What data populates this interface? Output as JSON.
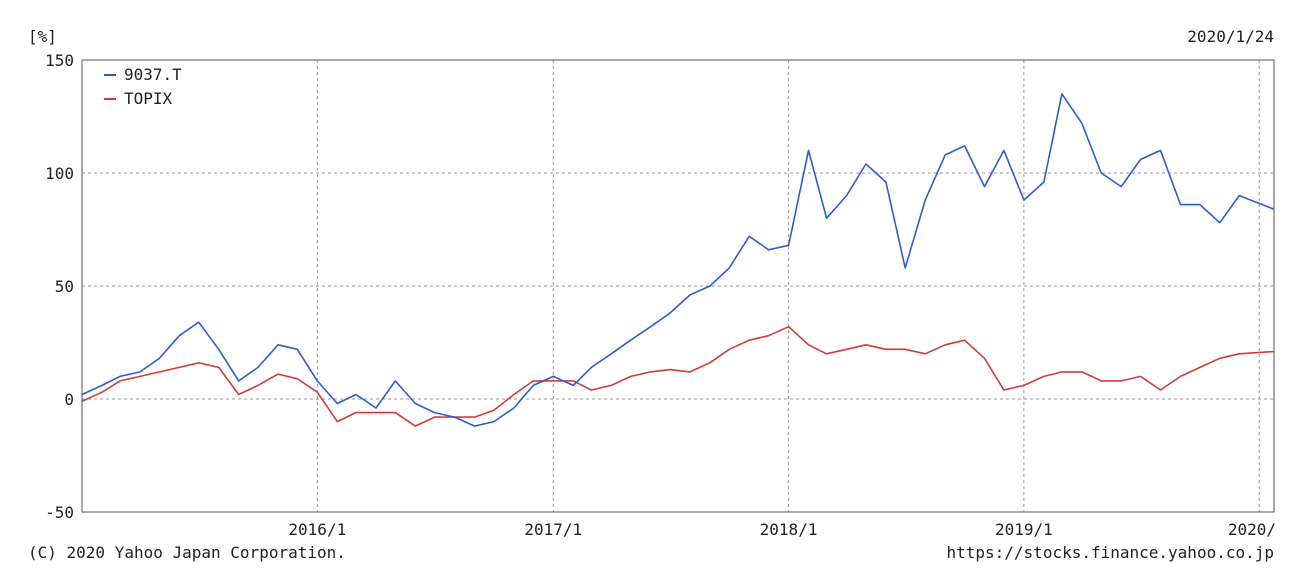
{
  "chart_data": {
    "type": "line",
    "unit_label": "[%]",
    "date_label": "2020/1/24",
    "x_tick_labels": [
      "2016/1",
      "2017/1",
      "2018/1",
      "2019/1",
      "2020/"
    ],
    "x_ticks": [
      "2016-01",
      "2017-01",
      "2018-01",
      "2019-01",
      "2020-01"
    ],
    "xlim": [
      "2015-01",
      "2020-01-24"
    ],
    "ylim": [
      -50,
      150
    ],
    "y_ticks": [
      -50,
      0,
      50,
      100,
      150
    ],
    "grid": true,
    "legend_position": "top-left",
    "series": [
      {
        "name": "9037.T",
        "color": "#2b5fce",
        "points": [
          [
            "2015-01",
            2
          ],
          [
            "2015-02",
            6
          ],
          [
            "2015-03",
            10
          ],
          [
            "2015-04",
            12
          ],
          [
            "2015-05",
            18
          ],
          [
            "2015-06",
            28
          ],
          [
            "2015-07",
            34
          ],
          [
            "2015-08",
            22
          ],
          [
            "2015-09",
            8
          ],
          [
            "2015-10",
            14
          ],
          [
            "2015-11",
            24
          ],
          [
            "2015-12",
            22
          ],
          [
            "2016-01",
            8
          ],
          [
            "2016-02",
            -2
          ],
          [
            "2016-03",
            2
          ],
          [
            "2016-04",
            -4
          ],
          [
            "2016-05",
            8
          ],
          [
            "2016-06",
            -2
          ],
          [
            "2016-07",
            -6
          ],
          [
            "2016-08",
            -8
          ],
          [
            "2016-09",
            -12
          ],
          [
            "2016-10",
            -10
          ],
          [
            "2016-11",
            -4
          ],
          [
            "2016-12",
            6
          ],
          [
            "2017-01",
            10
          ],
          [
            "2017-02",
            6
          ],
          [
            "2017-03",
            14
          ],
          [
            "2017-04",
            20
          ],
          [
            "2017-05",
            26
          ],
          [
            "2017-06",
            32
          ],
          [
            "2017-07",
            38
          ],
          [
            "2017-08",
            46
          ],
          [
            "2017-09",
            50
          ],
          [
            "2017-10",
            58
          ],
          [
            "2017-11",
            72
          ],
          [
            "2017-12",
            66
          ],
          [
            "2018-01",
            68
          ],
          [
            "2018-02",
            110
          ],
          [
            "2018-03",
            80
          ],
          [
            "2018-04",
            90
          ],
          [
            "2018-05",
            104
          ],
          [
            "2018-06",
            96
          ],
          [
            "2018-07",
            58
          ],
          [
            "2018-08",
            88
          ],
          [
            "2018-09",
            108
          ],
          [
            "2018-10",
            112
          ],
          [
            "2018-11",
            94
          ],
          [
            "2018-12",
            110
          ],
          [
            "2019-01",
            88
          ],
          [
            "2019-02",
            96
          ],
          [
            "2019-03",
            135
          ],
          [
            "2019-04",
            122
          ],
          [
            "2019-05",
            100
          ],
          [
            "2019-06",
            94
          ],
          [
            "2019-07",
            106
          ],
          [
            "2019-08",
            110
          ],
          [
            "2019-09",
            86
          ],
          [
            "2019-10",
            86
          ],
          [
            "2019-11",
            78
          ],
          [
            "2019-12",
            90
          ],
          [
            "2020-01-24",
            84
          ]
        ]
      },
      {
        "name": "TOPIX",
        "color": "#d23b3b",
        "points": [
          [
            "2015-01",
            -1
          ],
          [
            "2015-02",
            3
          ],
          [
            "2015-03",
            8
          ],
          [
            "2015-04",
            10
          ],
          [
            "2015-05",
            12
          ],
          [
            "2015-06",
            14
          ],
          [
            "2015-07",
            16
          ],
          [
            "2015-08",
            14
          ],
          [
            "2015-09",
            2
          ],
          [
            "2015-10",
            6
          ],
          [
            "2015-11",
            11
          ],
          [
            "2015-12",
            9
          ],
          [
            "2016-01",
            3
          ],
          [
            "2016-02",
            -10
          ],
          [
            "2016-03",
            -6
          ],
          [
            "2016-04",
            -6
          ],
          [
            "2016-05",
            -6
          ],
          [
            "2016-06",
            -12
          ],
          [
            "2016-07",
            -8
          ],
          [
            "2016-08",
            -8
          ],
          [
            "2016-09",
            -8
          ],
          [
            "2016-10",
            -5
          ],
          [
            "2016-11",
            2
          ],
          [
            "2016-12",
            8
          ],
          [
            "2017-01",
            8
          ],
          [
            "2017-02",
            8
          ],
          [
            "2017-03",
            4
          ],
          [
            "2017-04",
            6
          ],
          [
            "2017-05",
            10
          ],
          [
            "2017-06",
            12
          ],
          [
            "2017-07",
            13
          ],
          [
            "2017-08",
            12
          ],
          [
            "2017-09",
            16
          ],
          [
            "2017-10",
            22
          ],
          [
            "2017-11",
            26
          ],
          [
            "2017-12",
            28
          ],
          [
            "2018-01",
            32
          ],
          [
            "2018-02",
            24
          ],
          [
            "2018-03",
            20
          ],
          [
            "2018-04",
            22
          ],
          [
            "2018-05",
            24
          ],
          [
            "2018-06",
            22
          ],
          [
            "2018-07",
            22
          ],
          [
            "2018-08",
            20
          ],
          [
            "2018-09",
            24
          ],
          [
            "2018-10",
            26
          ],
          [
            "2018-11",
            18
          ],
          [
            "2018-12",
            4
          ],
          [
            "2019-01",
            6
          ],
          [
            "2019-02",
            10
          ],
          [
            "2019-03",
            12
          ],
          [
            "2019-04",
            12
          ],
          [
            "2019-05",
            8
          ],
          [
            "2019-06",
            8
          ],
          [
            "2019-07",
            10
          ],
          [
            "2019-08",
            4
          ],
          [
            "2019-09",
            10
          ],
          [
            "2019-10",
            14
          ],
          [
            "2019-11",
            18
          ],
          [
            "2019-12",
            20
          ],
          [
            "2020-01-24",
            21
          ]
        ]
      }
    ]
  },
  "footer": {
    "copyright": "(C) 2020 Yahoo Japan Corporation.",
    "source": "https://stocks.finance.yahoo.co.jp"
  },
  "colors": {
    "axis": "#555555",
    "grid": "#999999",
    "background": "#ffffff"
  }
}
